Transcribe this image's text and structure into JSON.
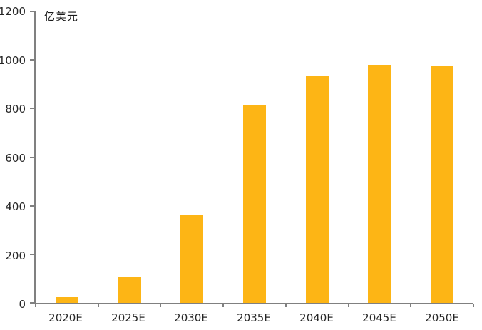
{
  "chart_data": {
    "type": "bar",
    "categories": [
      "2020E",
      "2025E",
      "2030E",
      "2035E",
      "2040E",
      "2045E",
      "2050E"
    ],
    "values": [
      25,
      105,
      360,
      815,
      935,
      980,
      975
    ],
    "title": "",
    "xlabel": "",
    "ylabel": "亿美元",
    "ylim": [
      0,
      1200
    ],
    "ytick_step": 200,
    "yticks": [
      0,
      200,
      400,
      600,
      800,
      1000,
      1200
    ],
    "bar_color": "#FDB515",
    "axis_color": "#808080",
    "text_color": "#262626",
    "grid": false,
    "legend": "none"
  }
}
